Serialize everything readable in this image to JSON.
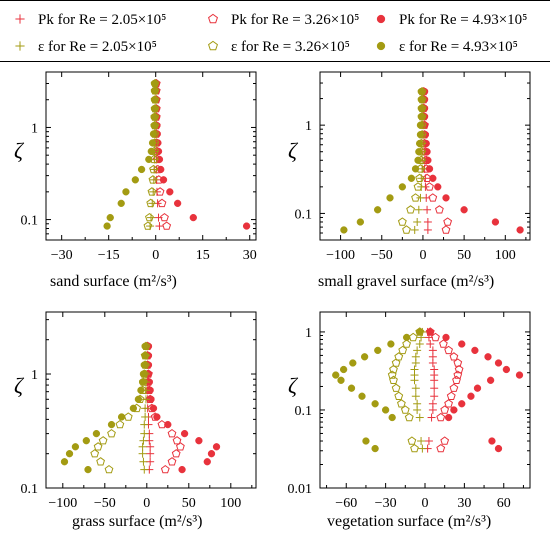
{
  "legend": [
    {
      "label": "Pk  for Re = 2.05×10⁵",
      "quantity": "Pk",
      "re": "2.05×10⁵",
      "marker": "plus",
      "color": "#e8323c",
      "fill": "none"
    },
    {
      "label": "Pk  for Re = 3.26×10⁵",
      "quantity": "Pk",
      "re": "3.26×10⁵",
      "marker": "pentagon",
      "color": "#e8323c",
      "fill": "none"
    },
    {
      "label": "Pk  for Re = 4.93×10⁵",
      "quantity": "Pk",
      "re": "4.93×10⁵",
      "marker": "circle",
      "color": "#e8323c",
      "fill": "#e8323c"
    },
    {
      "label": "ε  for Re = 2.05×10⁵",
      "quantity": "ε",
      "re": "2.05×10⁵",
      "marker": "plus",
      "color": "#a39b12",
      "fill": "none"
    },
    {
      "label": "ε  for Re = 3.26×10⁵",
      "quantity": "ε",
      "re": "3.26×10⁵",
      "marker": "pentagon",
      "color": "#a39b12",
      "fill": "none"
    },
    {
      "label": "ε  for Re = 4.93×10⁵",
      "quantity": "ε",
      "re": "4.93×10⁵",
      "marker": "circle",
      "color": "#a39b12",
      "fill": "#a39b12"
    }
  ],
  "colors": {
    "pk": "#e8323c",
    "eps": "#a39b12",
    "axis": "#000000"
  },
  "chart_data": [
    {
      "type": "scatter",
      "xlabel": "sand surface (m²/s³)",
      "ylabel": "ζ",
      "yscale": "log",
      "xlim": [
        -35,
        32
      ],
      "ylim": [
        0.06,
        4.0
      ],
      "xticks": [
        -30,
        -15,
        0,
        15,
        30
      ],
      "yticks": [
        0.1,
        1
      ],
      "zeta": [
        0.085,
        0.105,
        0.15,
        0.2,
        0.27,
        0.35,
        0.45,
        0.55,
        0.68,
        0.85,
        1.05,
        1.3,
        1.6,
        2.0,
        2.5,
        3.0
      ],
      "series": [
        {
          "name": "Pk for Re = 2.05×10⁵",
          "marker": "plus",
          "color": "#e8323c",
          "x": [
            1.2,
            0.9,
            0.6,
            0.4,
            0.3,
            0.25,
            0.2,
            0.15,
            0.12,
            0.1,
            0.1,
            0.1,
            0.1,
            0.1,
            0.1,
            0.1
          ]
        },
        {
          "name": "Pk for Re = 3.26×10⁵",
          "marker": "pentagon",
          "color": "#e8323c",
          "x": [
            3.5,
            2.8,
            2.0,
            1.4,
            1.0,
            0.7,
            0.5,
            0.4,
            0.3,
            0.2,
            0.2,
            0.2,
            0.2,
            0.2,
            0.2,
            0.2
          ]
        },
        {
          "name": "Pk for Re = 4.93×10⁵",
          "marker": "circle",
          "color": "#e8323c",
          "x": [
            29,
            12,
            7,
            4.5,
            2.5,
            1.6,
            1.2,
            0.9,
            0.7,
            0.5,
            0.4,
            0.3,
            0.3,
            0.2,
            0.2,
            0.2
          ]
        },
        {
          "name": "ε for Re = 2.05×10⁵",
          "marker": "plus",
          "color": "#a39b12",
          "x": [
            -1.8,
            -1.5,
            -1.1,
            -0.8,
            -0.6,
            -0.5,
            -0.4,
            -0.3,
            -0.3,
            -0.2,
            -0.2,
            -0.2,
            -0.2,
            -0.2,
            -0.2,
            -0.2
          ]
        },
        {
          "name": "ε for Re = 3.26×10⁵",
          "marker": "pentagon",
          "color": "#a39b12",
          "x": [
            -2.5,
            -2.0,
            -1.6,
            -1.2,
            -0.9,
            -0.7,
            -0.5,
            -0.4,
            -0.3,
            -0.3,
            -0.3,
            -0.3,
            -0.2,
            -0.2,
            -0.2,
            -0.2
          ]
        },
        {
          "name": "ε for Re = 4.93×10⁵",
          "marker": "circle",
          "color": "#a39b12",
          "x": [
            -15.5,
            -14.5,
            -11,
            -9.5,
            -6.5,
            -4.5,
            -2.2,
            -1.4,
            -1.0,
            -0.7,
            -0.5,
            -0.5,
            -0.4,
            -0.4,
            -0.4,
            -0.4
          ]
        }
      ]
    },
    {
      "type": "scatter",
      "xlabel": "small gravel surface (m²/s³)",
      "ylabel": "ζ",
      "yscale": "log",
      "xlim": [
        -125,
        130
      ],
      "ylim": [
        0.05,
        4.0
      ],
      "xticks": [
        -100,
        -50,
        0,
        50,
        100
      ],
      "yticks": [
        0.1,
        1
      ],
      "zeta": [
        0.065,
        0.08,
        0.11,
        0.15,
        0.2,
        0.25,
        0.32,
        0.4,
        0.5,
        0.62,
        0.78,
        1.0,
        1.25,
        1.55,
        1.95,
        2.4
      ],
      "series": [
        {
          "name": "Pk for Re = 2.05×10⁵",
          "marker": "plus",
          "color": "#e8323c",
          "x": [
            6,
            6,
            5,
            4,
            3,
            3,
            2,
            2,
            1.5,
            1,
            1,
            1,
            1,
            1,
            1,
            1
          ]
        },
        {
          "name": "Pk for Re = 3.26×10⁵",
          "marker": "pentagon",
          "color": "#e8323c",
          "x": [
            28,
            30,
            20,
            12,
            8,
            5,
            4,
            4,
            3,
            2,
            2,
            2,
            1,
            1,
            1,
            1
          ]
        },
        {
          "name": "Pk for Re = 4.93×10⁵",
          "marker": "circle",
          "color": "#e8323c",
          "x": [
            118,
            88,
            50,
            28,
            18,
            12,
            8,
            6,
            5,
            4,
            3,
            2,
            2,
            2,
            2,
            2
          ]
        },
        {
          "name": "ε for Re = 2.05×10⁵",
          "marker": "plus",
          "color": "#a39b12",
          "x": [
            -10,
            -7,
            -5,
            -3,
            -2,
            -2,
            -1,
            -1,
            -1,
            -1,
            -1,
            -1,
            -1,
            -1,
            -1,
            -1
          ]
        },
        {
          "name": "ε for Re = 3.26×10⁵",
          "marker": "pentagon",
          "color": "#a39b12",
          "x": [
            -20,
            -25,
            -15,
            -9,
            -6,
            -4,
            -3,
            -2,
            -2,
            -2,
            -1,
            -1,
            -1,
            -1,
            -1,
            -1
          ]
        },
        {
          "name": "ε for Re = 4.93×10⁵",
          "marker": "circle",
          "color": "#a39b12",
          "x": [
            -96,
            -76,
            -55,
            -40,
            -25,
            -14,
            -9,
            -6,
            -5,
            -4,
            -3,
            -3,
            -2,
            -2,
            -2,
            -2
          ]
        }
      ]
    },
    {
      "type": "scatter",
      "xlabel": "grass surface (m²/s³)",
      "ylabel": "ζ",
      "yscale": "log",
      "xlim": [
        -120,
        130
      ],
      "ylim": [
        0.1,
        3.5
      ],
      "xticks": [
        -100,
        -50,
        0,
        50,
        100
      ],
      "yticks": [
        0.1,
        1
      ],
      "zeta": [
        0.145,
        0.17,
        0.2,
        0.23,
        0.26,
        0.3,
        0.36,
        0.42,
        0.5,
        0.6,
        0.72,
        0.85,
        1.0,
        1.2,
        1.45,
        1.75
      ],
      "series": [
        {
          "name": "Pk for Re = 2.05×10⁵",
          "marker": "plus",
          "color": "#e8323c",
          "x": [
            3,
            4,
            4,
            4,
            3,
            3,
            2,
            2,
            1,
            1,
            1,
            1,
            1,
            1,
            1,
            1
          ]
        },
        {
          "name": "Pk for Re = 3.26×10⁵",
          "marker": "pentagon",
          "color": "#e8323c",
          "x": [
            22,
            30,
            35,
            40,
            36,
            30,
            18,
            10,
            6,
            4,
            3,
            2,
            2,
            1,
            1,
            1
          ]
        },
        {
          "name": "Pk for Re = 4.93×10⁵",
          "marker": "circle",
          "color": "#e8323c",
          "x": [
            42,
            72,
            77,
            83,
            62,
            45,
            25,
            12,
            8,
            5,
            4,
            3,
            2,
            2,
            2,
            2
          ]
        },
        {
          "name": "ε for Re = 2.05×10⁵",
          "marker": "plus",
          "color": "#a39b12",
          "x": [
            -3,
            -4,
            -5,
            -5,
            -4,
            -3,
            -3,
            -2,
            -2,
            -1,
            -1,
            -1,
            -1,
            -1,
            -1,
            -1
          ]
        },
        {
          "name": "ε for Re = 3.26×10⁵",
          "marker": "pentagon",
          "color": "#a39b12",
          "x": [
            -45,
            -55,
            -62,
            -58,
            -52,
            -42,
            -32,
            -22,
            -12,
            -8,
            -5,
            -4,
            -3,
            -2,
            -2,
            -1
          ]
        },
        {
          "name": "ε for Re = 4.93×10⁵",
          "marker": "circle",
          "color": "#a39b12",
          "x": [
            -70,
            -98,
            -92,
            -85,
            -72,
            -60,
            -42,
            -30,
            -16,
            -10,
            -7,
            -5,
            -4,
            -3,
            -2,
            -2
          ]
        }
      ]
    },
    {
      "type": "scatter",
      "xlabel": "vegetation surface (m²/s³)",
      "ylabel": "ζ",
      "yscale": "log",
      "xlim": [
        -80,
        80
      ],
      "ylim": [
        0.01,
        1.8
      ],
      "xticks": [
        -60,
        -30,
        0,
        30,
        60
      ],
      "yticks": [
        0.01,
        0.1,
        1
      ],
      "zeta": [
        0.032,
        0.04,
        0.08,
        0.1,
        0.12,
        0.15,
        0.19,
        0.24,
        0.28,
        0.33,
        0.4,
        0.48,
        0.58,
        0.7,
        0.85,
        1.0
      ],
      "series": [
        {
          "name": "Pk for Re = 2.05×10⁵",
          "marker": "plus",
          "color": "#e8323c",
          "x": [
            2,
            3,
            5,
            6,
            6,
            7,
            7,
            7,
            7,
            7,
            6,
            6,
            6,
            4,
            3,
            2
          ]
        },
        {
          "name": "Pk for Re = 3.26×10⁵",
          "marker": "pentagon",
          "color": "#e8323c",
          "x": [
            12,
            15,
            12,
            15,
            18,
            20,
            22,
            24,
            25,
            26,
            25,
            22,
            18,
            14,
            8,
            4
          ]
        },
        {
          "name": "Pk for Re = 4.93×10⁵",
          "marker": "circle",
          "color": "#e8323c",
          "x": [
            56,
            51,
            18,
            22,
            28,
            35,
            40,
            50,
            72,
            62,
            56,
            48,
            38,
            28,
            16,
            4
          ]
        },
        {
          "name": "ε for Re = 2.05×10⁵",
          "marker": "plus",
          "color": "#a39b12",
          "x": [
            -2,
            -3,
            -4,
            -6,
            -6,
            -7,
            -7,
            -8,
            -8,
            -8,
            -7,
            -7,
            -6,
            -4,
            -3,
            -2
          ]
        },
        {
          "name": "ε for Re = 3.26×10⁵",
          "marker": "pentagon",
          "color": "#a39b12",
          "x": [
            -8,
            -10,
            -12,
            -15,
            -18,
            -20,
            -22,
            -24,
            -25,
            -24,
            -22,
            -20,
            -17,
            -14,
            -9,
            -4
          ]
        },
        {
          "name": "ε for Re = 4.93×10⁵",
          "marker": "circle",
          "color": "#a39b12",
          "x": [
            -38,
            -45,
            -25,
            -30,
            -38,
            -48,
            -56,
            -64,
            -68,
            -62,
            -55,
            -46,
            -36,
            -26,
            -14,
            -4
          ]
        }
      ]
    }
  ]
}
